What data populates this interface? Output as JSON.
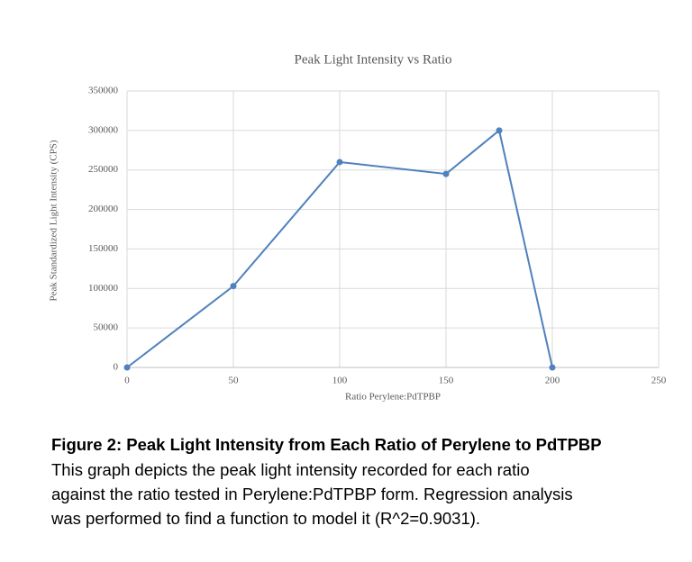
{
  "chart_data": {
    "type": "line",
    "title": "Peak Light Intensity vs Ratio",
    "x_label": "Ratio Perylene:PdTPBP",
    "y_label": "Peak Standardized Light Intensity (CPS)",
    "x": [
      0,
      50,
      100,
      150,
      175,
      200
    ],
    "series": [
      {
        "name": "Peak Light Intensity",
        "color": "#4f81bd",
        "values": [
          0,
          103000,
          260000,
          245000,
          300000,
          0
        ]
      }
    ],
    "xlim": [
      0,
      250
    ],
    "xticks": [
      0,
      50,
      100,
      150,
      200,
      250
    ],
    "ylim": [
      0,
      350000
    ],
    "yticks": [
      0,
      50000,
      100000,
      150000,
      200000,
      250000,
      300000,
      350000
    ],
    "grid": true,
    "markers": true
  },
  "caption": {
    "title": "Figure 2: Peak Light Intensity from Each Ratio of Perylene to PdTPBP",
    "lines": [
      "This graph depicts the peak light intensity recorded for each ratio",
      "against the ratio tested in Perylene:PdTPBP form. Regression analysis",
      "was performed to find a function to model it (R^2=0.9031)."
    ]
  }
}
